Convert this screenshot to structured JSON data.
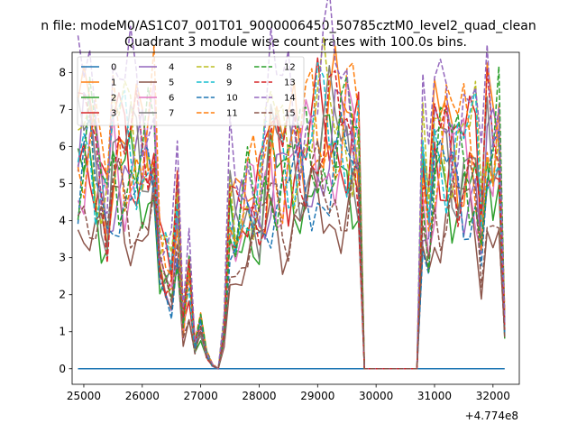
{
  "figure": {
    "suptitle": "n file: modeM0/AS1C07_001T01_9000006450_50785cztM0_level2_quad_clean",
    "title": "Quadrant 3 module wise count rates with 100.0s bins.",
    "x_offset_label": "+4.774e8"
  },
  "chart_data": {
    "type": "line",
    "title": "Quadrant 3 module wise count rates with 100.0s bins.",
    "xlabel": "",
    "ylabel": "",
    "x_offset": 477400000,
    "xlim": [
      24800,
      32450
    ],
    "ylim": [
      -0.42,
      8.55
    ],
    "xticks": [
      25000,
      26000,
      27000,
      28000,
      29000,
      30000,
      31000,
      32000
    ],
    "xtick_labels": [
      "25000",
      "26000",
      "27000",
      "28000",
      "29000",
      "30000",
      "31000",
      "32000"
    ],
    "yticks": [
      0,
      1,
      2,
      3,
      4,
      5,
      6,
      7,
      8
    ],
    "ytick_labels": [
      "0",
      "1",
      "2",
      "3",
      "4",
      "5",
      "6",
      "7",
      "8"
    ],
    "grid": false,
    "legend": {
      "placement": "top-left",
      "columns": 4
    },
    "segments": [
      {
        "start": 24900,
        "count": 18
      },
      {
        "start": 26700,
        "count": 8
      },
      {
        "start": 27500,
        "count": 23
      },
      {
        "start": 29800,
        "count": 10
      },
      {
        "start": 30800,
        "count": 15
      }
    ],
    "anchor_x": [
      24900,
      25100,
      25200,
      25400,
      25500,
      25700,
      26000,
      26200,
      26300,
      26500,
      26600,
      26700,
      26800,
      26900,
      27000,
      27100,
      27200,
      27300,
      27400,
      27500,
      27600,
      27800,
      28000,
      28200,
      28400,
      28600,
      28800,
      29000,
      29200,
      29400,
      29500,
      29600,
      29700,
      29800,
      30000,
      30300,
      30700,
      30800,
      30900,
      31000,
      31200,
      31400,
      31600,
      31700,
      31800,
      31900,
      32000,
      32100,
      32200
    ],
    "anchor_y": [
      5.6,
      6.5,
      5.6,
      4.3,
      6.0,
      5.6,
      5.5,
      6.0,
      3.0,
      2.3,
      4.1,
      1.2,
      2.6,
      0.6,
      1.3,
      0.4,
      0.1,
      0.0,
      1.0,
      4.0,
      3.6,
      4.6,
      4.3,
      5.9,
      5.4,
      5.8,
      5.7,
      6.0,
      6.1,
      6.3,
      6.4,
      6.2,
      5.9,
      0.0,
      0.0,
      0.0,
      0.0,
      5.0,
      3.8,
      5.9,
      6.1,
      5.7,
      5.6,
      5.5,
      3.6,
      5.9,
      5.5,
      6.2,
      1.1
    ],
    "series": [
      {
        "name": "0",
        "color": "#1f77b4",
        "dash": false,
        "scale": 0.0,
        "phase": 0.0,
        "const": 0
      },
      {
        "name": "1",
        "color": "#ff7f0e",
        "dash": false,
        "scale": 1.06,
        "phase": 1.1
      },
      {
        "name": "2",
        "color": "#2ca02c",
        "dash": false,
        "scale": 0.88,
        "phase": 2.3
      },
      {
        "name": "3",
        "color": "#d62728",
        "dash": false,
        "scale": 1.04,
        "phase": 3.7
      },
      {
        "name": "4",
        "color": "#9467bd",
        "dash": false,
        "scale": 0.95,
        "phase": 0.6
      },
      {
        "name": "5",
        "color": "#8c564b",
        "dash": false,
        "scale": 0.7,
        "phase": 4.4
      },
      {
        "name": "6",
        "color": "#e377c2",
        "dash": false,
        "scale": 0.97,
        "phase": 5.2
      },
      {
        "name": "7",
        "color": "#7f7f7f",
        "dash": false,
        "scale": 1.0,
        "phase": 1.9
      },
      {
        "name": "8",
        "color": "#bcbd22",
        "dash": true,
        "scale": 1.1,
        "phase": 2.8
      },
      {
        "name": "9",
        "color": "#17becf",
        "dash": true,
        "scale": 1.05,
        "phase": 3.3
      },
      {
        "name": "10",
        "color": "#1f77b4",
        "dash": true,
        "scale": 0.84,
        "phase": 0.2
      },
      {
        "name": "11",
        "color": "#ff7f0e",
        "dash": true,
        "scale": 1.08,
        "phase": 4.9
      },
      {
        "name": "12",
        "color": "#2ca02c",
        "dash": true,
        "scale": 0.98,
        "phase": 5.8
      },
      {
        "name": "13",
        "color": "#d62728",
        "dash": true,
        "scale": 1.02,
        "phase": 1.4
      },
      {
        "name": "14",
        "color": "#9467bd",
        "dash": true,
        "scale": 1.27,
        "phase": 2.1
      },
      {
        "name": "15",
        "color": "#8c564b",
        "dash": true,
        "scale": 0.78,
        "phase": 3.9
      }
    ]
  }
}
